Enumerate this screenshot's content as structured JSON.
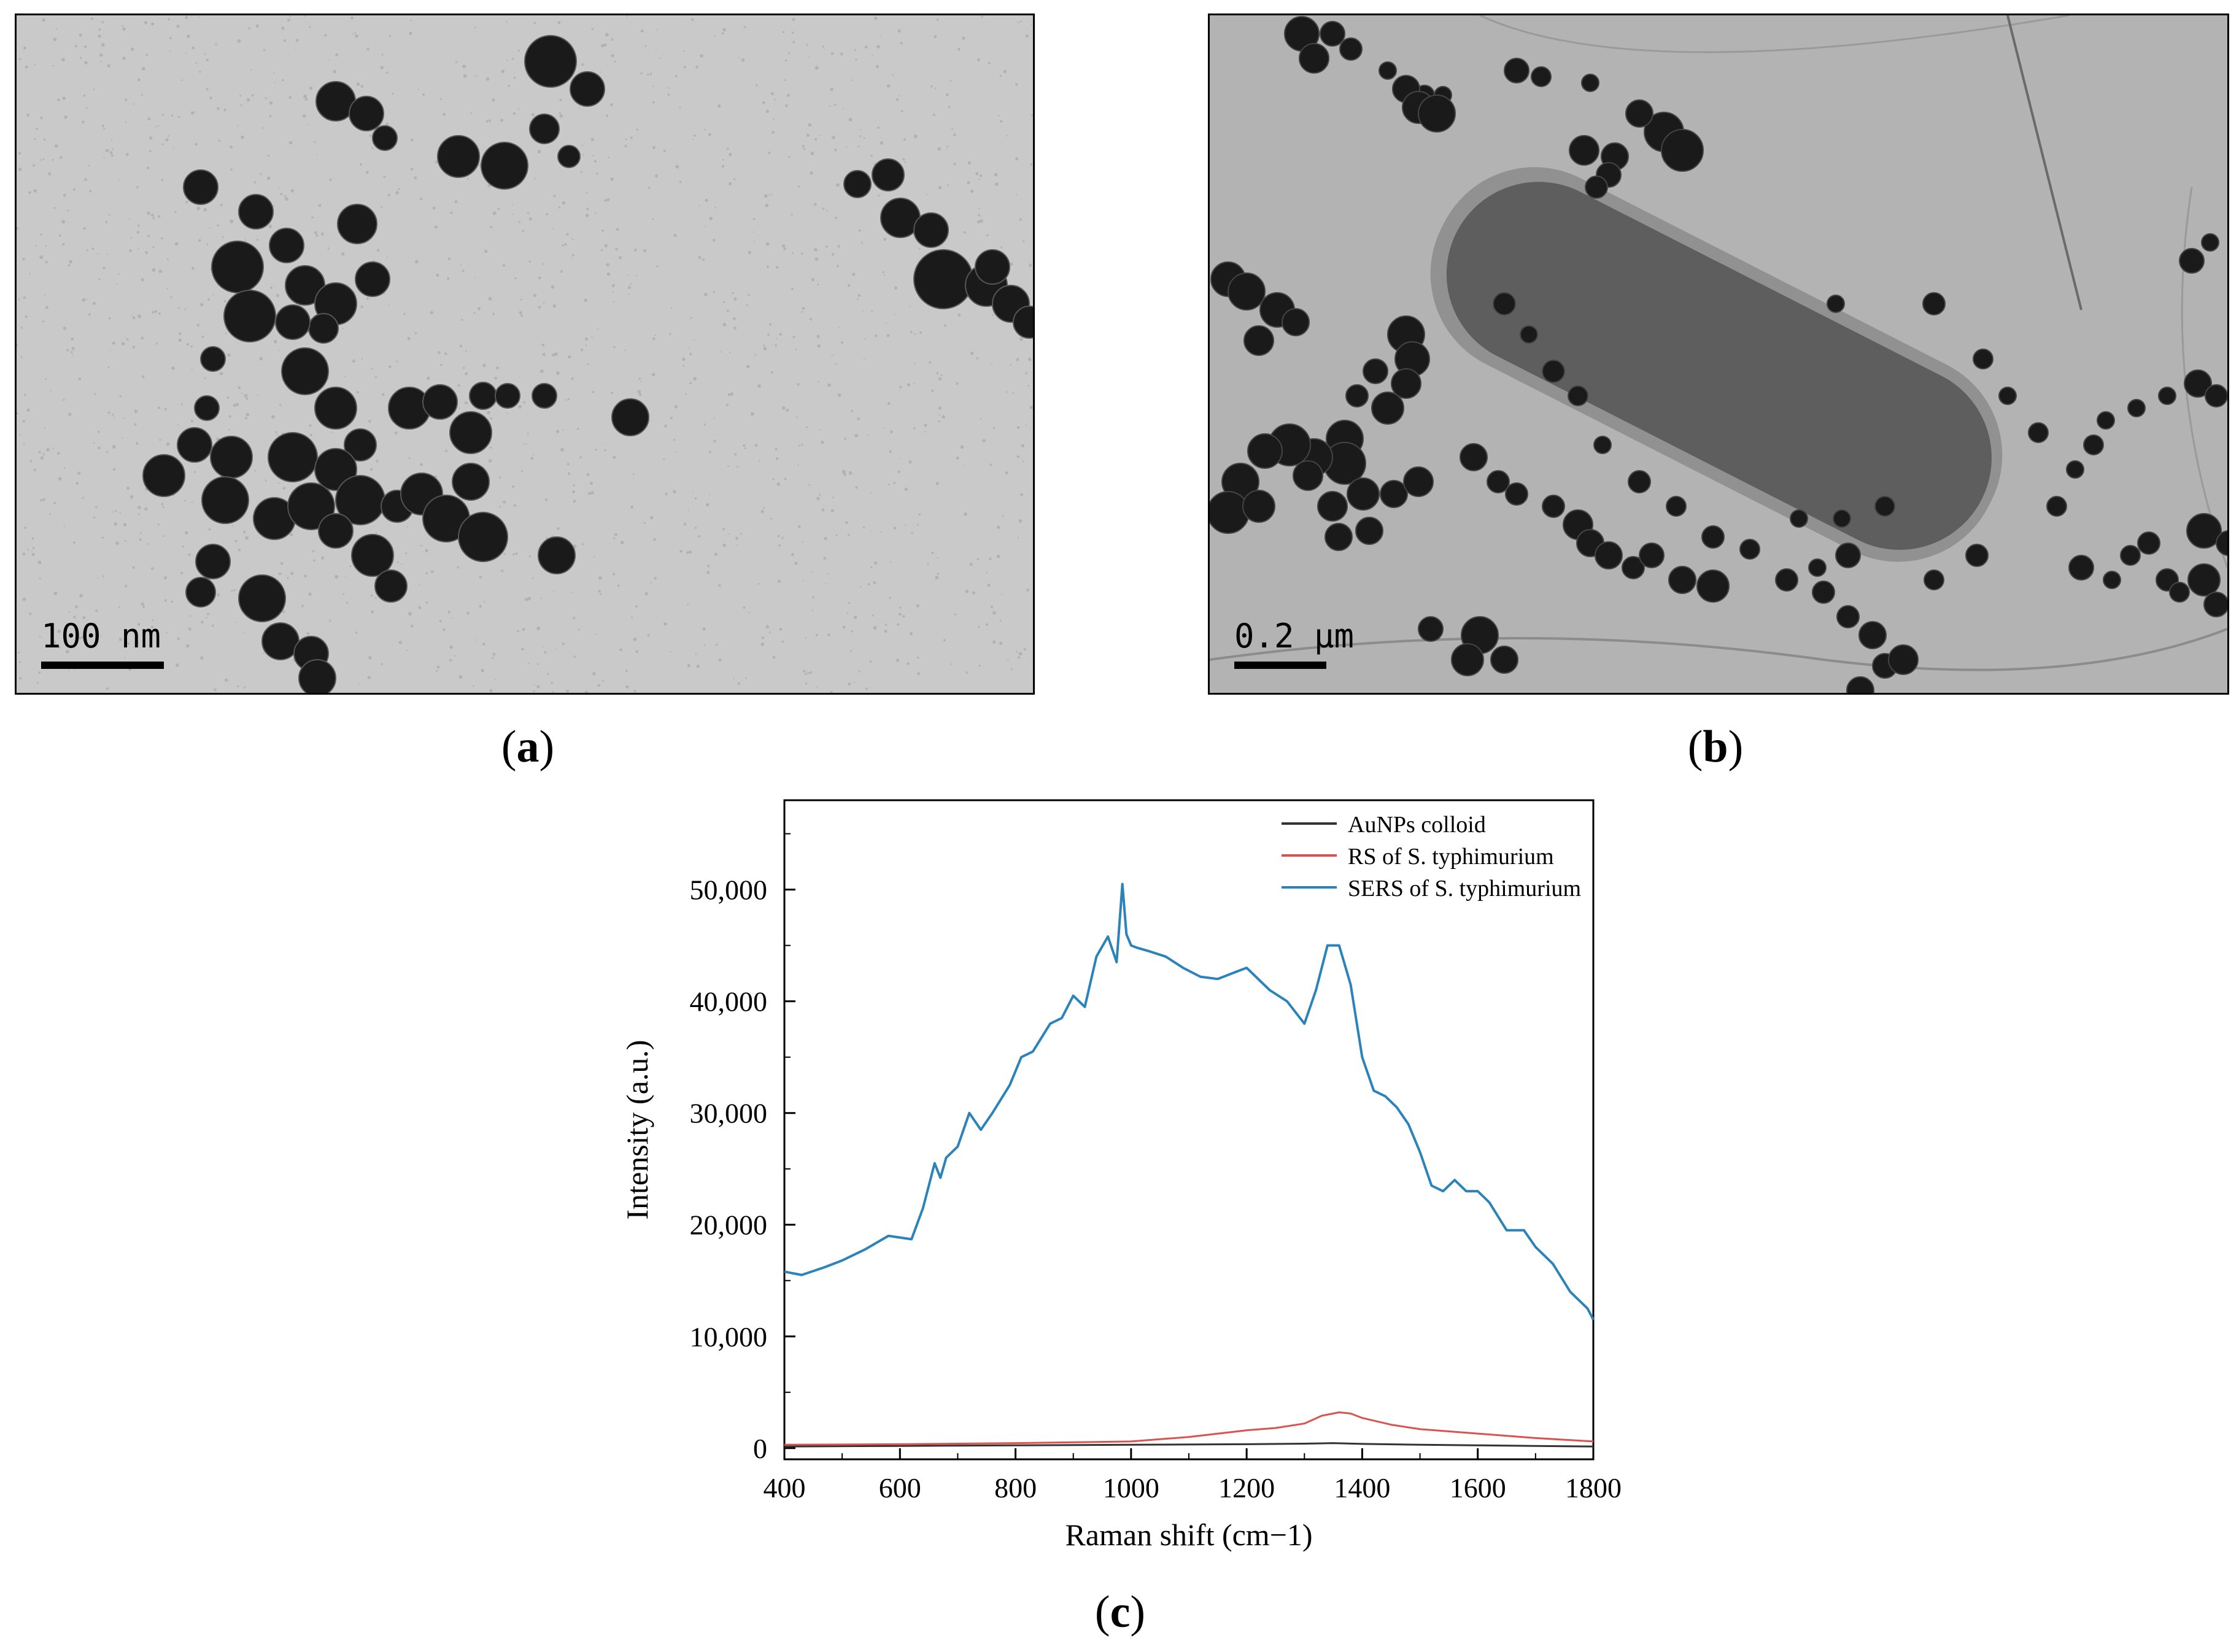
{
  "panels": {
    "a": {
      "label": "a",
      "scale_bar": "100 nm",
      "scale_bar_color": "#000000",
      "image": "TEM micrograph: clusters of dark polyhedral gold nanoparticles on a light speckled grey support film"
    },
    "b": {
      "label": "b",
      "scale_bar": "0.2 μm",
      "scale_bar_color": "#000000",
      "image": "TEM micrograph: rod-shaped Salmonella typhimurium cell decorated with dark gold nanoparticles"
    },
    "c": {
      "label": "c"
    }
  },
  "colors": {
    "tem_background_a": "#c9c9c9",
    "tem_background_b": "#b3b3b3",
    "particle": "#1a1a1a",
    "bacterium": "#5e5e5e"
  },
  "chart_data": {
    "type": "line",
    "title": "",
    "xlabel": "Raman shift (cm−1)",
    "ylabel": "Intensity (a.u.)",
    "xlim": [
      400,
      1800
    ],
    "ylim": [
      -1000,
      58000
    ],
    "xticks": [
      400,
      600,
      800,
      1000,
      1200,
      1400,
      1600,
      1800
    ],
    "xtick_labels": [
      "400",
      "600",
      "800",
      "1000",
      "1200",
      "1400",
      "1600",
      "1800"
    ],
    "yticks": [
      0,
      10000,
      20000,
      30000,
      40000,
      50000
    ],
    "ytick_labels": [
      "0",
      "10,000",
      "20,000",
      "30,000",
      "40,000",
      "50,000"
    ],
    "grid": false,
    "legend_position": "top-right",
    "series": [
      {
        "name": "AuNPs colloid",
        "color": "#333333",
        "x": [
          400,
          600,
          800,
          1000,
          1200,
          1300,
          1350,
          1400,
          1500,
          1600,
          1700,
          1800
        ],
        "y": [
          150,
          200,
          250,
          300,
          350,
          400,
          450,
          380,
          300,
          250,
          200,
          150
        ]
      },
      {
        "name": "RS of S. typhimurium",
        "color": "#d9534f",
        "x": [
          400,
          600,
          800,
          1000,
          1100,
          1200,
          1250,
          1300,
          1330,
          1360,
          1380,
          1400,
          1450,
          1500,
          1600,
          1700,
          1800
        ],
        "y": [
          300,
          350,
          450,
          600,
          1000,
          1600,
          1800,
          2200,
          2900,
          3200,
          3100,
          2700,
          2100,
          1700,
          1300,
          900,
          600
        ]
      },
      {
        "name": "SERS of S. typhimurium",
        "color": "#2b83ba",
        "x": [
          400,
          430,
          470,
          500,
          540,
          580,
          620,
          640,
          660,
          670,
          680,
          700,
          720,
          740,
          760,
          790,
          810,
          830,
          860,
          880,
          900,
          920,
          940,
          960,
          975,
          985,
          992,
          1000,
          1010,
          1030,
          1060,
          1090,
          1120,
          1150,
          1180,
          1200,
          1240,
          1270,
          1300,
          1320,
          1340,
          1360,
          1380,
          1400,
          1420,
          1440,
          1460,
          1480,
          1500,
          1520,
          1540,
          1560,
          1580,
          1600,
          1620,
          1650,
          1680,
          1700,
          1730,
          1760,
          1790,
          1800
        ],
        "y": [
          15800,
          15500,
          16200,
          16800,
          17800,
          19000,
          18700,
          21500,
          25500,
          24200,
          26000,
          27000,
          30000,
          28500,
          30000,
          32500,
          35000,
          35500,
          38000,
          38500,
          40500,
          39500,
          44000,
          45800,
          43500,
          50500,
          46000,
          45000,
          44800,
          44500,
          44000,
          43000,
          42200,
          42000,
          42600,
          43000,
          41000,
          40000,
          38000,
          41000,
          45000,
          45000,
          41500,
          35000,
          32000,
          31500,
          30500,
          29000,
          26500,
          23500,
          23000,
          24000,
          23000,
          23000,
          22000,
          19500,
          19500,
          18000,
          16500,
          14000,
          12500,
          11500
        ]
      }
    ]
  }
}
